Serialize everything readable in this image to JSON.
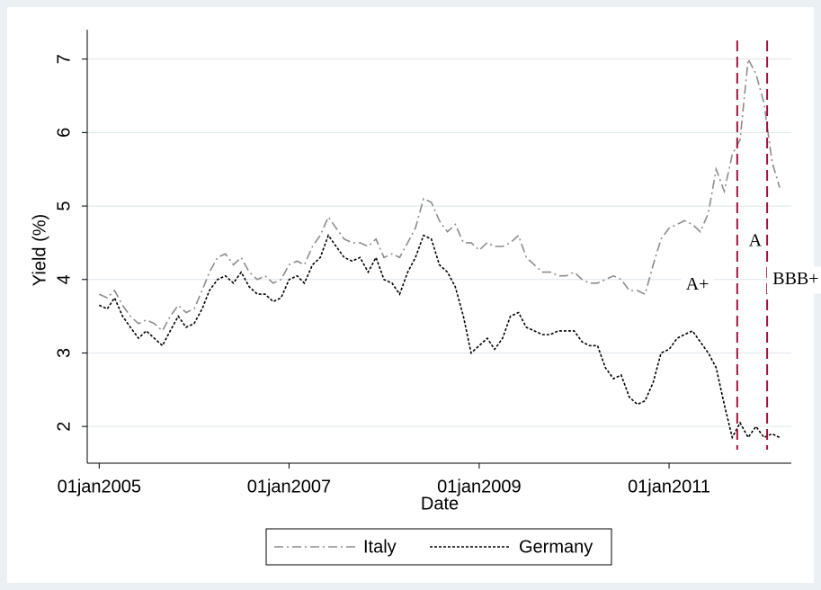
{
  "chart_data": {
    "type": "line",
    "x_label": "Date",
    "y_label": "Yield (%)",
    "x": [
      "2005-01-01",
      "2005-02-01",
      "2005-03-01",
      "2005-04-01",
      "2005-05-01",
      "2005-06-01",
      "2005-07-01",
      "2005-08-01",
      "2005-09-01",
      "2005-10-01",
      "2005-11-01",
      "2005-12-01",
      "2006-01-01",
      "2006-02-01",
      "2006-03-01",
      "2006-04-01",
      "2006-05-01",
      "2006-06-01",
      "2006-07-01",
      "2006-08-01",
      "2006-09-01",
      "2006-10-01",
      "2006-11-01",
      "2006-12-01",
      "2007-01-01",
      "2007-02-01",
      "2007-03-01",
      "2007-04-01",
      "2007-05-01",
      "2007-06-01",
      "2007-07-01",
      "2007-08-01",
      "2007-09-01",
      "2007-10-01",
      "2007-11-01",
      "2007-12-01",
      "2008-01-01",
      "2008-02-01",
      "2008-03-01",
      "2008-04-01",
      "2008-05-01",
      "2008-06-01",
      "2008-07-01",
      "2008-08-01",
      "2008-09-01",
      "2008-10-01",
      "2008-11-01",
      "2008-12-01",
      "2009-01-01",
      "2009-02-01",
      "2009-03-01",
      "2009-04-01",
      "2009-05-01",
      "2009-06-01",
      "2009-07-01",
      "2009-08-01",
      "2009-09-01",
      "2009-10-01",
      "2009-11-01",
      "2009-12-01",
      "2010-01-01",
      "2010-02-01",
      "2010-03-01",
      "2010-04-01",
      "2010-05-01",
      "2010-06-01",
      "2010-07-01",
      "2010-08-01",
      "2010-09-01",
      "2010-10-01",
      "2010-11-01",
      "2010-12-01",
      "2011-01-01",
      "2011-02-01",
      "2011-03-01",
      "2011-04-01",
      "2011-05-01",
      "2011-06-01",
      "2011-07-01",
      "2011-08-01",
      "2011-09-01",
      "2011-10-01",
      "2011-11-01",
      "2011-12-01",
      "2012-01-01",
      "2012-02-01",
      "2012-03-01"
    ],
    "series": [
      {
        "name": "Italy",
        "color": "#8c8c8c",
        "dash": "10 4 2 4",
        "values": [
          3.8,
          3.75,
          3.85,
          3.65,
          3.5,
          3.4,
          3.45,
          3.4,
          3.3,
          3.5,
          3.65,
          3.55,
          3.6,
          3.85,
          4.1,
          4.3,
          4.35,
          4.2,
          4.3,
          4.1,
          4.0,
          4.05,
          3.95,
          4.0,
          4.2,
          4.25,
          4.2,
          4.45,
          4.6,
          4.85,
          4.7,
          4.55,
          4.5,
          4.5,
          4.45,
          4.55,
          4.3,
          4.35,
          4.3,
          4.5,
          4.7,
          5.1,
          5.05,
          4.8,
          4.65,
          4.75,
          4.5,
          4.5,
          4.4,
          4.5,
          4.45,
          4.45,
          4.5,
          4.6,
          4.3,
          4.2,
          4.1,
          4.1,
          4.05,
          4.05,
          4.1,
          4.0,
          3.95,
          3.95,
          4.0,
          4.05,
          4.0,
          3.85,
          3.85,
          3.8,
          4.2,
          4.55,
          4.7,
          4.75,
          4.8,
          4.75,
          4.65,
          4.9,
          5.5,
          5.2,
          5.7,
          5.9,
          7.0,
          6.8,
          6.4,
          5.6,
          5.25
        ]
      },
      {
        "name": "Germany",
        "color": "#000000",
        "dash": "3 2",
        "values": [
          3.65,
          3.6,
          3.75,
          3.5,
          3.35,
          3.2,
          3.3,
          3.2,
          3.1,
          3.3,
          3.5,
          3.35,
          3.4,
          3.6,
          3.85,
          4.0,
          4.05,
          3.95,
          4.1,
          3.9,
          3.8,
          3.8,
          3.7,
          3.75,
          4.0,
          4.05,
          3.95,
          4.2,
          4.3,
          4.6,
          4.45,
          4.3,
          4.25,
          4.3,
          4.1,
          4.3,
          4.0,
          3.95,
          3.8,
          4.1,
          4.3,
          4.6,
          4.55,
          4.2,
          4.1,
          3.9,
          3.5,
          3.0,
          3.1,
          3.2,
          3.05,
          3.2,
          3.5,
          3.55,
          3.35,
          3.3,
          3.25,
          3.25,
          3.3,
          3.3,
          3.3,
          3.15,
          3.1,
          3.1,
          2.8,
          2.65,
          2.7,
          2.4,
          2.3,
          2.35,
          2.6,
          3.0,
          3.05,
          3.2,
          3.25,
          3.3,
          3.15,
          3.0,
          2.8,
          2.3,
          1.85,
          2.05,
          1.85,
          2.0,
          1.85,
          1.9,
          1.85
        ]
      }
    ],
    "xlim": [
      "2004-11-16",
      "2012-04-15"
    ],
    "xticks": [
      {
        "value": "2005-01-01",
        "label": "01jan2005"
      },
      {
        "value": "2007-01-01",
        "label": "01jan2007"
      },
      {
        "value": "2009-01-01",
        "label": "01jan2009"
      },
      {
        "value": "2011-01-01",
        "label": "01jan2011"
      }
    ],
    "ylim": [
      1.5,
      7.4
    ],
    "yticks": [
      2,
      3,
      4,
      5,
      6,
      7
    ],
    "grid": true,
    "vlines": [
      {
        "x": "2011-09-20",
        "color": "#a0143c"
      },
      {
        "x": "2012-01-13",
        "color": "#a0143c"
      }
    ],
    "annotations": [
      {
        "text": "A+",
        "x": "2011-04-20",
        "y": 3.92
      },
      {
        "text": "A",
        "x": "2011-11-28",
        "y": 4.51
      },
      {
        "text": "BBB+",
        "x": "2012-05-02",
        "y": 3.99
      }
    ],
    "legend": "bottom"
  }
}
